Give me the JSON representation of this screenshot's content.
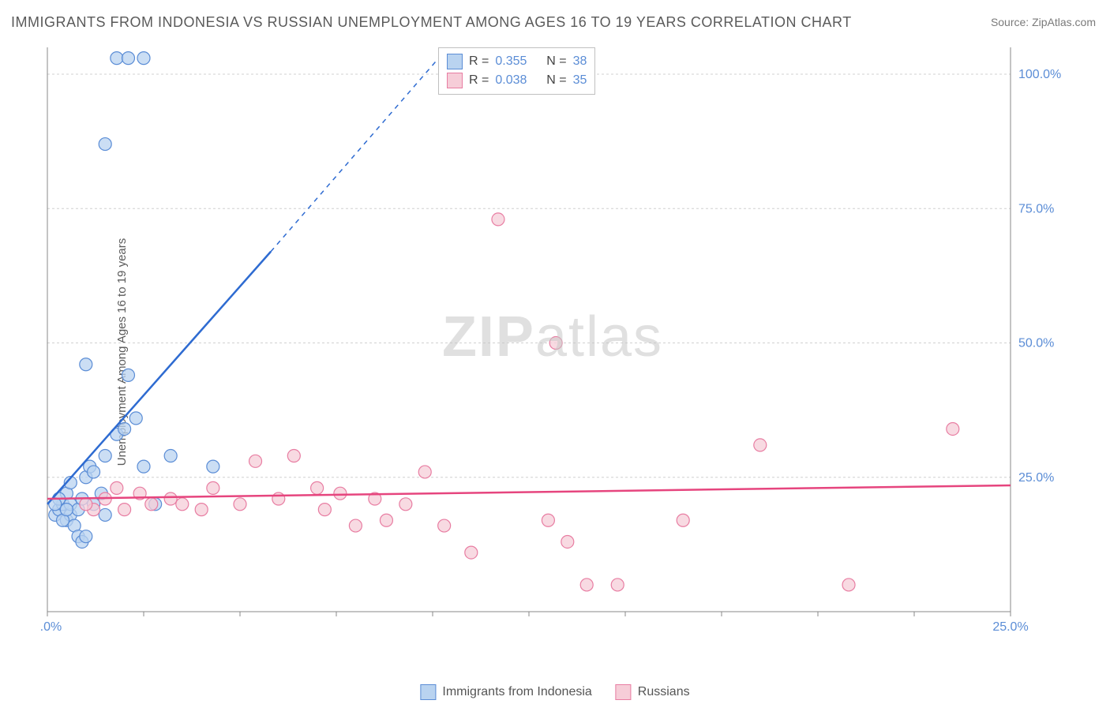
{
  "title": "IMMIGRANTS FROM INDONESIA VS RUSSIAN UNEMPLOYMENT AMONG AGES 16 TO 19 YEARS CORRELATION CHART",
  "source": "Source: ZipAtlas.com",
  "y_axis_label": "Unemployment Among Ages 16 to 19 years",
  "watermark_a": "ZIP",
  "watermark_b": "atlas",
  "chart": {
    "type": "scatter",
    "xlim": [
      0,
      25
    ],
    "ylim": [
      0,
      105
    ],
    "x_ticks": [
      0,
      2.5,
      5,
      7.5,
      10,
      12.5,
      15,
      17.5,
      20,
      22.5,
      25
    ],
    "x_tick_labels": {
      "0": "0.0%",
      "25": "25.0%"
    },
    "y_ticks": [
      25,
      50,
      75,
      100
    ],
    "y_tick_labels": {
      "25": "25.0%",
      "50": "50.0%",
      "75": "75.0%",
      "100": "100.0%"
    },
    "grid_color": "#d0d0d0",
    "background": "#ffffff",
    "series": [
      {
        "name": "Immigrants from Indonesia",
        "color_fill": "#b9d3f0",
        "color_stroke": "#5b8dd6",
        "trend_color": "#2e6bd1",
        "r": 0.355,
        "n": 38,
        "trend": {
          "x1": 0,
          "y1": 20,
          "x2": 5.8,
          "y2": 67,
          "dash_x2": 10.4,
          "dash_y2": 105
        },
        "points": [
          [
            0.2,
            18
          ],
          [
            0.3,
            19
          ],
          [
            0.4,
            20
          ],
          [
            0.5,
            17
          ],
          [
            0.5,
            22
          ],
          [
            0.6,
            18
          ],
          [
            0.6,
            20
          ],
          [
            0.7,
            16
          ],
          [
            0.8,
            19
          ],
          [
            0.8,
            14
          ],
          [
            0.9,
            21
          ],
          [
            0.9,
            13
          ],
          [
            1.0,
            25
          ],
          [
            1.0,
            14
          ],
          [
            1.1,
            27
          ],
          [
            1.2,
            20
          ],
          [
            1.2,
            26
          ],
          [
            1.4,
            22
          ],
          [
            1.5,
            18
          ],
          [
            1.5,
            29
          ],
          [
            1.8,
            33
          ],
          [
            2.0,
            34
          ],
          [
            2.1,
            44
          ],
          [
            2.3,
            36
          ],
          [
            2.5,
            27
          ],
          [
            2.8,
            20
          ],
          [
            3.2,
            29
          ],
          [
            4.3,
            27
          ],
          [
            1.0,
            46
          ],
          [
            1.5,
            87
          ],
          [
            1.8,
            103
          ],
          [
            2.1,
            103
          ],
          [
            2.5,
            103
          ],
          [
            0.3,
            21
          ],
          [
            0.4,
            17
          ],
          [
            0.6,
            24
          ],
          [
            0.2,
            20
          ],
          [
            0.5,
            19
          ]
        ]
      },
      {
        "name": "Russians",
        "color_fill": "#f6cdd8",
        "color_stroke": "#e87da2",
        "trend_color": "#e6457e",
        "r": 0.038,
        "n": 35,
        "trend": {
          "x1": 0,
          "y1": 21,
          "x2": 25,
          "y2": 23.5
        },
        "points": [
          [
            1.2,
            19
          ],
          [
            1.5,
            21
          ],
          [
            1.8,
            23
          ],
          [
            2.0,
            19
          ],
          [
            2.4,
            22
          ],
          [
            2.7,
            20
          ],
          [
            3.2,
            21
          ],
          [
            3.5,
            20
          ],
          [
            4.0,
            19
          ],
          [
            4.3,
            23
          ],
          [
            5.0,
            20
          ],
          [
            5.4,
            28
          ],
          [
            6.0,
            21
          ],
          [
            6.4,
            29
          ],
          [
            7.0,
            23
          ],
          [
            7.2,
            19
          ],
          [
            7.6,
            22
          ],
          [
            8.0,
            16
          ],
          [
            8.5,
            21
          ],
          [
            8.8,
            17
          ],
          [
            9.3,
            20
          ],
          [
            9.8,
            26
          ],
          [
            10.3,
            16
          ],
          [
            11.0,
            11
          ],
          [
            11.7,
            73
          ],
          [
            13.0,
            17
          ],
          [
            13.2,
            50
          ],
          [
            13.5,
            13
          ],
          [
            14.0,
            5
          ],
          [
            14.8,
            5
          ],
          [
            16.5,
            17
          ],
          [
            18.5,
            31
          ],
          [
            20.8,
            5
          ],
          [
            23.5,
            34
          ],
          [
            1.0,
            20
          ]
        ]
      }
    ]
  },
  "legend_top": {
    "rows": [
      {
        "swatch_fill": "#b9d3f0",
        "swatch_stroke": "#5b8dd6",
        "r_label": "R =",
        "r_val": "0.355",
        "n_label": "N =",
        "n_val": "38",
        "val_color": "#5b8dd6"
      },
      {
        "swatch_fill": "#f6cdd8",
        "swatch_stroke": "#e87da2",
        "r_label": "R =",
        "r_val": "0.038",
        "n_label": "N =",
        "n_val": "35",
        "val_color": "#5b8dd6"
      }
    ]
  },
  "legend_bottom": {
    "items": [
      {
        "swatch_fill": "#b9d3f0",
        "swatch_stroke": "#5b8dd6",
        "label": "Immigrants from Indonesia"
      },
      {
        "swatch_fill": "#f6cdd8",
        "swatch_stroke": "#e87da2",
        "label": "Russians"
      }
    ]
  }
}
